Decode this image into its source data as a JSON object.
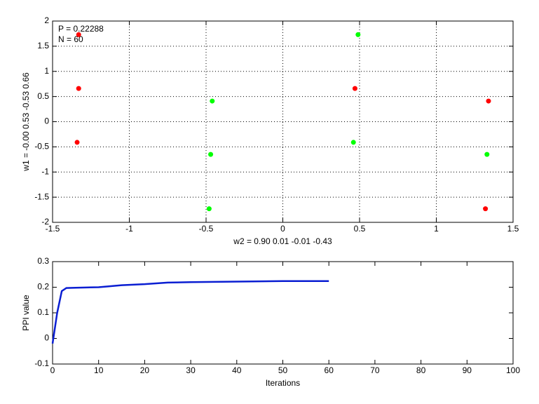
{
  "chart_data": [
    {
      "type": "scatter",
      "xlabel": "w2 = 0.90  0.01  -0.01  -0.43",
      "ylabel": "w1 = -0.00  0.53  -0.53  0.66",
      "annotations": [
        "P = 0.22288",
        "N = 60"
      ],
      "series": [
        {
          "color": "#ff0000",
          "x": [
            -1.33,
            -1.33,
            -1.34,
            0.47,
            1.34,
            1.32
          ],
          "y": [
            1.73,
            0.66,
            -0.41,
            0.66,
            0.41,
            -1.73
          ]
        },
        {
          "color": "#00ff00",
          "x": [
            0.49,
            -0.46,
            -0.47,
            0.46,
            1.33,
            -0.48
          ],
          "y": [
            1.73,
            0.41,
            -0.65,
            -0.41,
            -0.65,
            -1.73
          ]
        }
      ],
      "xlim": [
        -1.5,
        1.5
      ],
      "ylim": [
        -2,
        2
      ],
      "xticks": [
        -1.5,
        -1,
        -0.5,
        0,
        0.5,
        1,
        1.5
      ],
      "yticks": [
        -2,
        -1.5,
        -1,
        -0.5,
        0,
        0.5,
        1,
        1.5,
        2
      ],
      "grid": true
    },
    {
      "type": "line",
      "xlabel": "Iterations",
      "ylabel": "PPI value",
      "x": [
        0,
        1,
        2,
        3,
        5,
        10,
        12,
        15,
        20,
        25,
        30,
        40,
        50,
        60
      ],
      "series": [
        {
          "color": "#0a1ed2",
          "values": [
            -0.02,
            0.1,
            0.185,
            0.197,
            0.198,
            0.2,
            0.203,
            0.208,
            0.212,
            0.218,
            0.22,
            0.222,
            0.224,
            0.224
          ]
        }
      ],
      "xlim": [
        0,
        100
      ],
      "ylim": [
        -0.1,
        0.3
      ],
      "xticks": [
        0,
        10,
        20,
        30,
        40,
        50,
        60,
        70,
        80,
        90,
        100
      ],
      "yticks": [
        -0.1,
        0,
        0.1,
        0.2,
        0.3
      ],
      "grid": false
    }
  ]
}
